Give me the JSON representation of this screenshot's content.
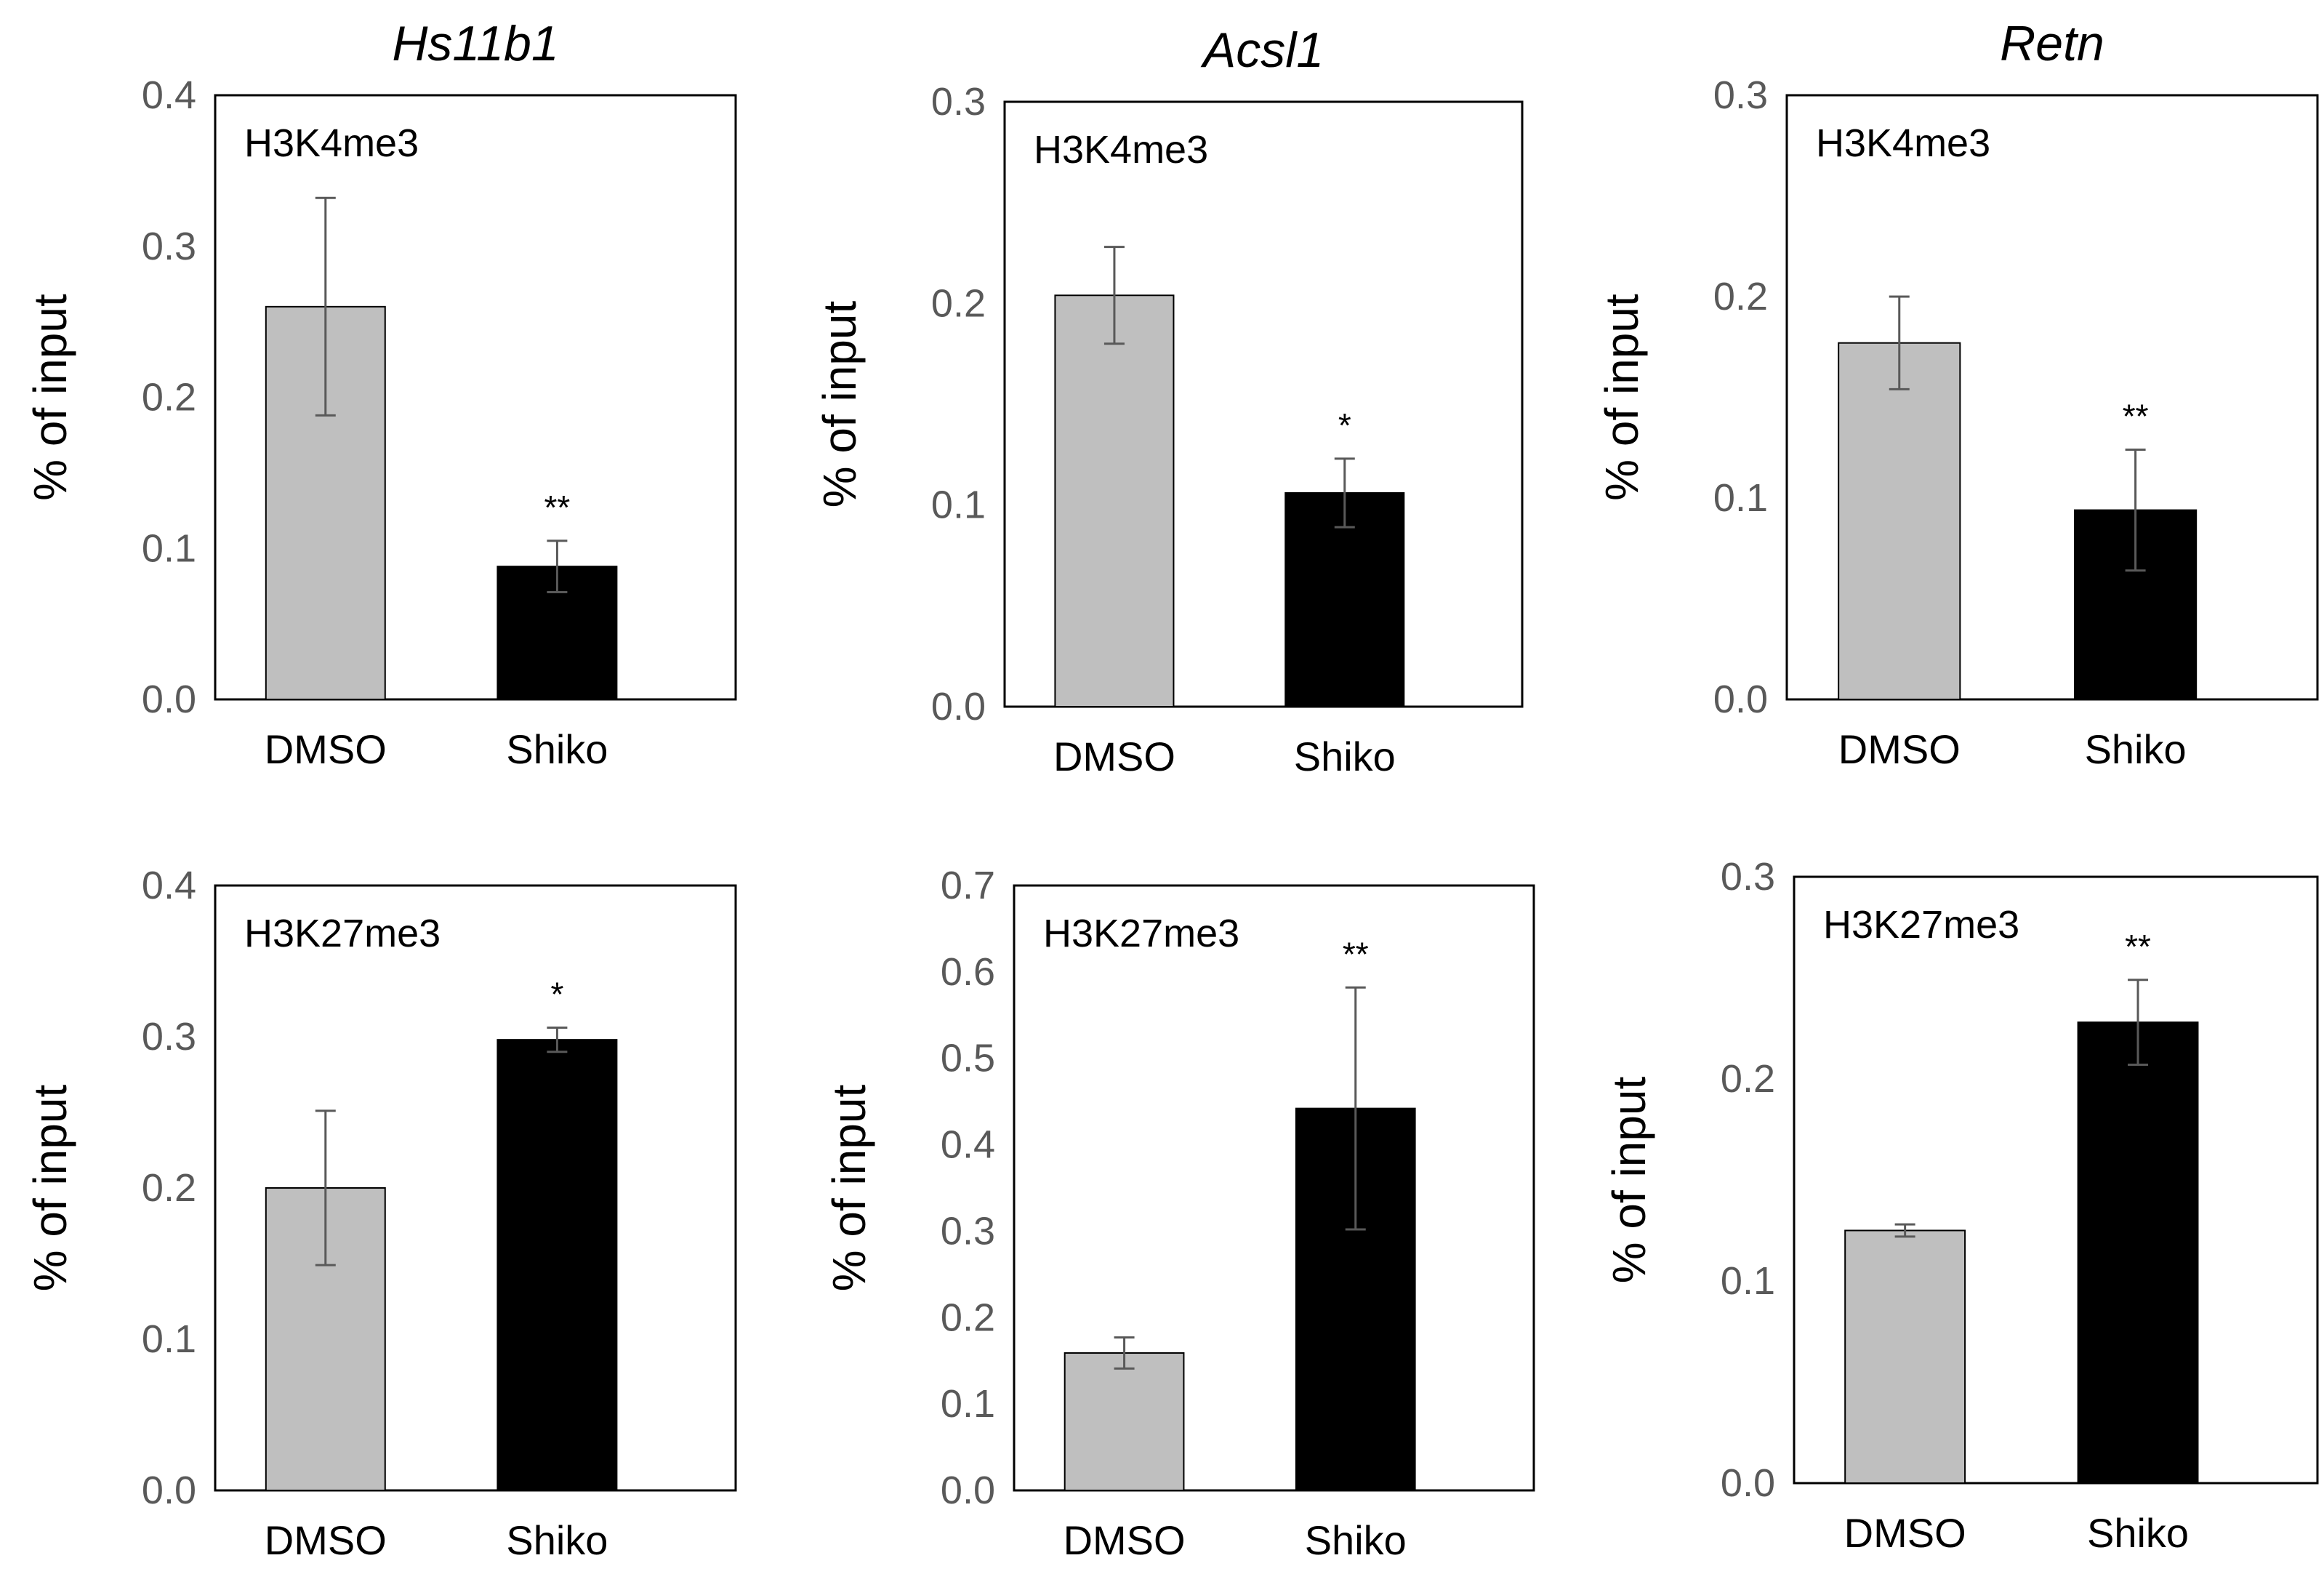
{
  "chart_data": [
    {
      "type": "bar",
      "title": "Hs11b1",
      "ylabel": "% of input",
      "annotation": "H3K4me3",
      "categories": [
        "DMSO",
        "Shiko"
      ],
      "values": [
        0.26,
        0.088
      ],
      "errors": [
        0.072,
        0.017
      ],
      "significance": [
        "",
        "**"
      ],
      "colors": [
        "#bfbfbf",
        "#000000"
      ],
      "ylim": [
        0,
        0.4
      ],
      "yticks": [
        "0.0",
        "0.1",
        "0.2",
        "0.3",
        "0.4"
      ]
    },
    {
      "type": "bar",
      "title": "Acsl1",
      "ylabel": "% of input",
      "annotation": "H3K4me3",
      "categories": [
        "DMSO",
        "Shiko"
      ],
      "values": [
        0.204,
        0.106
      ],
      "errors": [
        0.024,
        0.017
      ],
      "significance": [
        "",
        "*"
      ],
      "colors": [
        "#bfbfbf",
        "#000000"
      ],
      "ylim": [
        0,
        0.3
      ],
      "yticks": [
        "0.0",
        "0.1",
        "0.2",
        "0.3"
      ]
    },
    {
      "type": "bar",
      "title": "Retn",
      "ylabel": "% of input",
      "annotation": "H3K4me3",
      "categories": [
        "DMSO",
        "Shiko"
      ],
      "values": [
        0.177,
        0.094
      ],
      "errors": [
        0.023,
        0.03
      ],
      "significance": [
        "",
        "**"
      ],
      "colors": [
        "#bfbfbf",
        "#000000"
      ],
      "ylim": [
        0,
        0.3
      ],
      "yticks": [
        "0.0",
        "0.1",
        "0.2",
        "0.3"
      ]
    },
    {
      "type": "bar",
      "title": "",
      "ylabel": "% of input",
      "annotation": "H3K27me3",
      "categories": [
        "DMSO",
        "Shiko"
      ],
      "values": [
        0.2,
        0.298
      ],
      "errors": [
        0.051,
        0.008
      ],
      "significance": [
        "",
        "*"
      ],
      "colors": [
        "#bfbfbf",
        "#000000"
      ],
      "ylim": [
        0,
        0.4
      ],
      "yticks": [
        "0.0",
        "0.1",
        "0.2",
        "0.3",
        "0.4"
      ]
    },
    {
      "type": "bar",
      "title": "",
      "ylabel": "% of input",
      "annotation": "H3K27me3",
      "categories": [
        "DMSO",
        "Shiko"
      ],
      "values": [
        0.159,
        0.442
      ],
      "errors": [
        0.018,
        0.14
      ],
      "significance": [
        "",
        "**"
      ],
      "colors": [
        "#bfbfbf",
        "#000000"
      ],
      "ylim": [
        0,
        0.7
      ],
      "yticks": [
        "0.0",
        "0.1",
        "0.2",
        "0.3",
        "0.4",
        "0.5",
        "0.6",
        "0.7"
      ]
    },
    {
      "type": "bar",
      "title": "",
      "ylabel": "% of input",
      "annotation": "H3K27me3",
      "categories": [
        "DMSO",
        "Shiko"
      ],
      "values": [
        0.125,
        0.228
      ],
      "errors": [
        0.003,
        0.021
      ],
      "significance": [
        "",
        "**"
      ],
      "colors": [
        "#bfbfbf",
        "#000000"
      ],
      "ylim": [
        0,
        0.3
      ],
      "yticks": [
        "0.0",
        "0.1",
        "0.2",
        "0.3"
      ]
    }
  ]
}
